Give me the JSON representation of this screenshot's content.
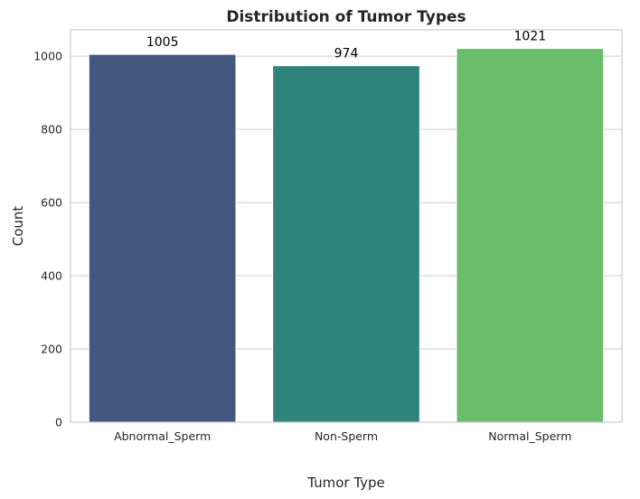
{
  "chart_data": {
    "type": "bar",
    "title": "Distribution of Tumor Types",
    "xlabel": "Tumor Type",
    "ylabel": "Count",
    "categories": [
      "Abnormal_Sperm",
      "Non-Sperm",
      "Normal_Sperm"
    ],
    "values": [
      1005,
      974,
      1021
    ],
    "data_labels": [
      "1005",
      "974",
      "1021"
    ],
    "colors": [
      "#43587f",
      "#2e837d",
      "#6bbd6c"
    ],
    "ylim": [
      0,
      1072
    ],
    "yticks": [
      0,
      200,
      400,
      600,
      800,
      1000
    ],
    "ytick_labels": [
      "0",
      "200",
      "400",
      "600",
      "800",
      "1000"
    ],
    "grid": "horizontal",
    "legend": "none"
  }
}
